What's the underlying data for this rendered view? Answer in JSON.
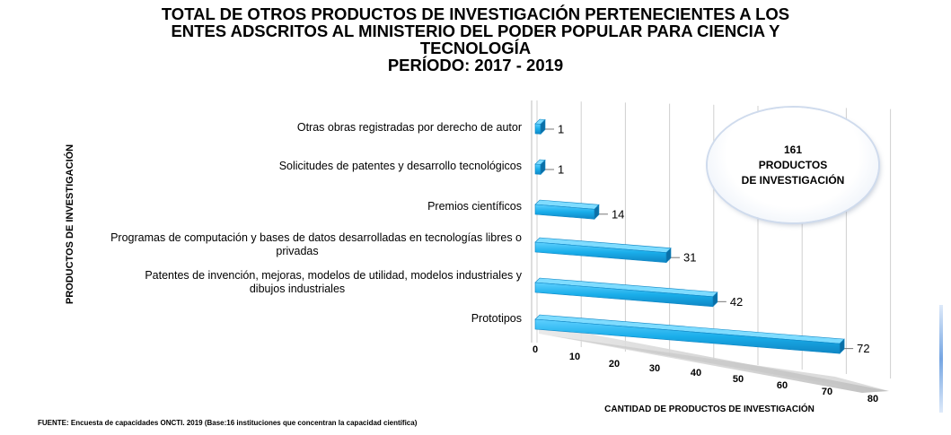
{
  "title_lines": [
    "TOTAL DE OTROS PRODUCTOS DE INVESTIGACIÓN PERTENECIENTES A LOS",
    "ENTES ADSCRITOS AL MINISTERIO DEL PODER POPULAR PARA CIENCIA Y",
    "TECNOLOGÍA",
    "PERÍODO: 2017 -  2019"
  ],
  "source": "FUENTE: Encuesta de capacidades ONCTI. 2019 (Base:16 instituciones que concentran la capacidad científica)",
  "total_box": {
    "value": "161",
    "line1": "PRODUCTOS",
    "line2": "DE INVESTIGACIÓN"
  },
  "chart_data": {
    "type": "bar",
    "orientation": "horizontal",
    "style": "3d",
    "xlabel": "CANTIDAD DE PRODUCTOS DE INVESTIGACIÓN",
    "ylabel": "PRODUCTOS  DE INVESTIGACIÓN",
    "xlim": [
      0,
      80
    ],
    "xticks": [
      0,
      10,
      20,
      30,
      40,
      50,
      60,
      70,
      80
    ],
    "grid": true,
    "categories": [
      [
        "Otras obras registradas por derecho de autor"
      ],
      [
        "Solicitudes de patentes y desarrollo tecnológicos"
      ],
      [
        "Premios científicos"
      ],
      [
        "Programas de computación y bases de datos desarrolladas en tecnologías libres o",
        "privadas"
      ],
      [
        "Patentes de invención, mejoras, modelos de utilidad, modelos industriales y",
        "dibujos industriales"
      ],
      [
        "Prototipos"
      ]
    ],
    "values": [
      1,
      1,
      14,
      31,
      42,
      72
    ],
    "bar_color": "#1aaeea"
  }
}
